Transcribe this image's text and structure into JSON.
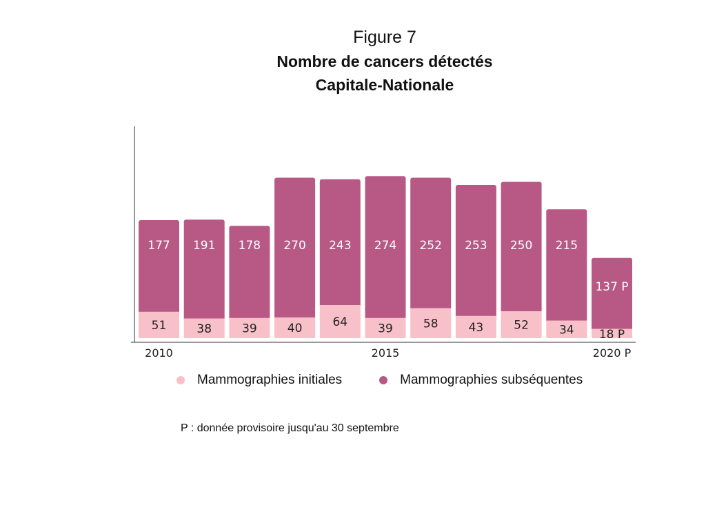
{
  "header": {
    "figure_label": "Figure 7",
    "title_line1": "Nombre de cancers détectés",
    "title_line2": "Capitale-Nationale"
  },
  "chart_data": {
    "type": "bar",
    "stacked": true,
    "categories": [
      "2010",
      "2011",
      "2012",
      "2013",
      "2014",
      "2015",
      "2016",
      "2017",
      "2018",
      "2019",
      "2020 P"
    ],
    "x_tick_labels": [
      "2010",
      "",
      "",
      "",
      "",
      "2015",
      "",
      "",
      "",
      "",
      "2020 P"
    ],
    "series": [
      {
        "name": "Mammographies initiales",
        "values": [
          51,
          38,
          39,
          40,
          64,
          39,
          58,
          43,
          52,
          34,
          18
        ],
        "labels": [
          "51",
          "38",
          "39",
          "40",
          "64",
          "39",
          "58",
          "43",
          "52",
          "34",
          "18 P"
        ],
        "color": "#f8c0c8"
      },
      {
        "name": "Mammographies subséquentes",
        "values": [
          177,
          191,
          178,
          270,
          243,
          274,
          252,
          253,
          250,
          215,
          137
        ],
        "labels": [
          "177",
          "191",
          "178",
          "270",
          "243",
          "274",
          "252",
          "253",
          "250",
          "215",
          "137 P"
        ],
        "color": "#b85985"
      }
    ],
    "ylim": [
      0,
      420
    ],
    "grid": false,
    "legend_position": "bottom"
  },
  "footnote": "P : donnée provisoire jusqu'au 30 septembre"
}
